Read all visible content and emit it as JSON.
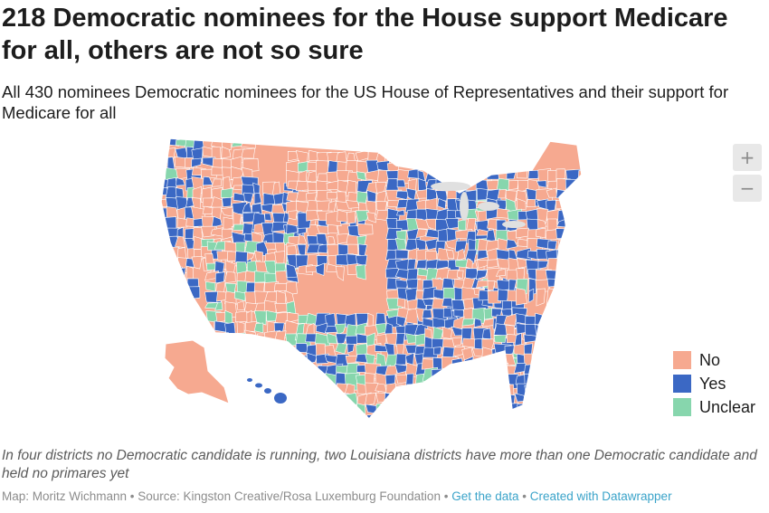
{
  "header": {
    "title": "218 Democratic nominees for the House support Medicare for all, others are not so sure",
    "subtitle": "All 430 nominees Democratic nominees for the US House of Representatives and their support for Medicare for all"
  },
  "map": {
    "colors": {
      "no": "#f6a990",
      "yes": "#3b68c4",
      "unclear": "#87d6ad",
      "no_data": "#dddddd",
      "border": "#ffffff",
      "water": "#e0e0e0"
    }
  },
  "zoom": {
    "in_label": "+",
    "out_label": "−"
  },
  "legend": {
    "items": [
      {
        "label": "No",
        "color": "#f6a990"
      },
      {
        "label": "Yes",
        "color": "#3b68c4"
      },
      {
        "label": "Unclear",
        "color": "#87d6ad"
      }
    ]
  },
  "notes": {
    "text": "In four districts no Democratic candidate is running, two Louisiana districts have more than one Democratic candidate and held no primares yet"
  },
  "footer": {
    "credit": "Map: Moritz Wichmann • Source: Kingston Creative/Rosa Luxemburg Foundation • ",
    "get_data": "Get the data",
    "separator": " • ",
    "created_with": "Created with Datawrapper"
  }
}
